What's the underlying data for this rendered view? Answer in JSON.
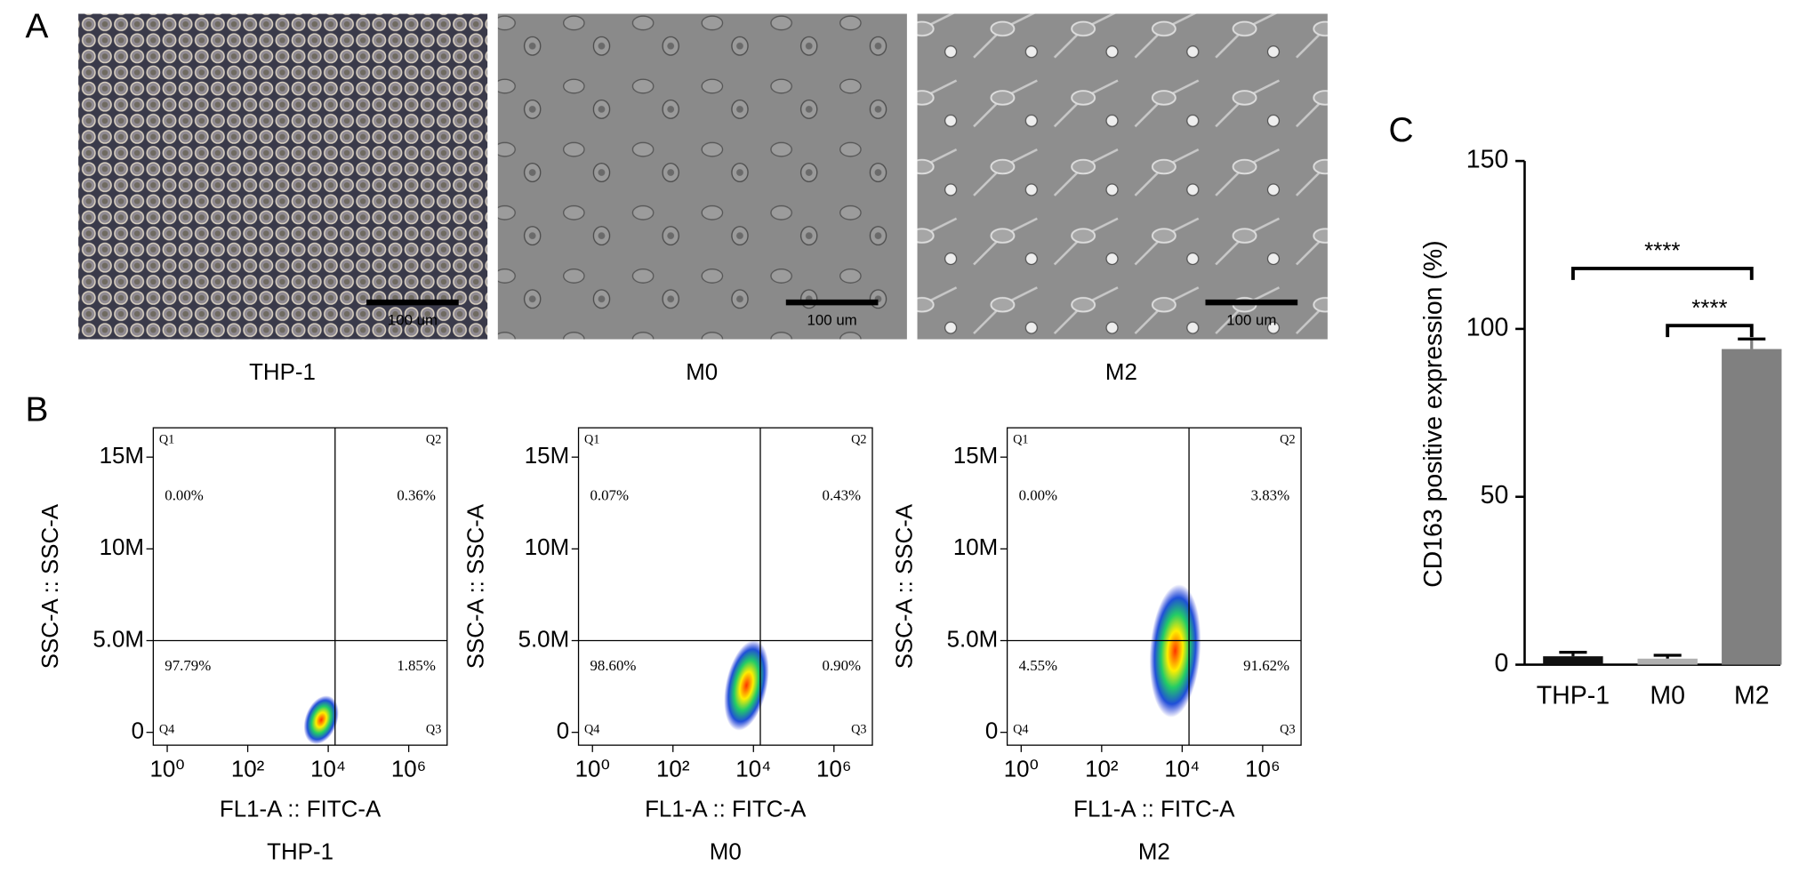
{
  "panel_labels": [
    "A",
    "B",
    "C"
  ],
  "micrographs": [
    {
      "label": "THP-1",
      "scale_bar": "100 um"
    },
    {
      "label": "M0",
      "scale_bar": "100 um"
    },
    {
      "label": "M2",
      "scale_bar": "100 um"
    }
  ],
  "chart_data": [
    {
      "type": "flow",
      "title": "THP-1",
      "x_label": "FL1-A :: FITC-A",
      "y_label": "SSC-A :: SSC-A",
      "x_scale": "log",
      "xlim": [
        0.45,
        9000000
      ],
      "ylim": [
        -700000,
        16600000
      ],
      "xticks": [
        {
          "value": 1,
          "label": "10⁰"
        },
        {
          "value": 100,
          "label": "10²"
        },
        {
          "value": 10000,
          "label": "10⁴"
        },
        {
          "value": 1000000,
          "label": "10⁶"
        }
      ],
      "yticks": [
        0,
        {
          "value": 5000000,
          "label": "5.0M"
        },
        {
          "value": 10000000,
          "label": "10M"
        },
        {
          "value": 15000000,
          "label": "15M"
        }
      ],
      "gate": [
        14800,
        5000000
      ],
      "quadrants": [
        {
          "name": "Q1",
          "percent": "0.00%"
        },
        {
          "name": "Q2",
          "percent": "0.36%"
        },
        {
          "name": "Q3",
          "percent": "1.85%"
        },
        {
          "name": "Q4",
          "percent": "97.79%"
        }
      ]
    },
    {
      "type": "flow",
      "title": "M0",
      "x_label": "FL1-A :: FITC-A",
      "y_label": "SSC-A :: SSC-A",
      "x_scale": "log",
      "xlim": [
        0.45,
        9000000
      ],
      "ylim": [
        -700000,
        16600000
      ],
      "xticks": [
        {
          "value": 1,
          "label": "10⁰"
        },
        {
          "value": 100,
          "label": "10²"
        },
        {
          "value": 10000,
          "label": "10⁴"
        },
        {
          "value": 1000000,
          "label": "10⁶"
        }
      ],
      "yticks": [
        0,
        {
          "value": 5000000,
          "label": "5.0M"
        },
        {
          "value": 10000000,
          "label": "10M"
        },
        {
          "value": 15000000,
          "label": "15M"
        }
      ],
      "gate": [
        14800,
        5000000
      ],
      "quadrants": [
        {
          "name": "Q1",
          "percent": "0.07%"
        },
        {
          "name": "Q2",
          "percent": "0.43%"
        },
        {
          "name": "Q3",
          "percent": "0.90%"
        },
        {
          "name": "Q4",
          "percent": "98.60%"
        }
      ]
    },
    {
      "type": "flow",
      "title": "M2",
      "x_label": "FL1-A :: FITC-A",
      "y_label": "SSC-A :: SSC-A",
      "x_scale": "log",
      "xlim": [
        0.45,
        9000000
      ],
      "ylim": [
        -700000,
        16600000
      ],
      "xticks": [
        {
          "value": 1,
          "label": "10⁰"
        },
        {
          "value": 100,
          "label": "10²"
        },
        {
          "value": 10000,
          "label": "10⁴"
        },
        {
          "value": 1000000,
          "label": "10⁶"
        }
      ],
      "yticks": [
        0,
        {
          "value": 5000000,
          "label": "5.0M"
        },
        {
          "value": 10000000,
          "label": "10M"
        },
        {
          "value": 15000000,
          "label": "15M"
        }
      ],
      "gate": [
        14800,
        5000000
      ],
      "quadrants": [
        {
          "name": "Q1",
          "percent": "0.00%"
        },
        {
          "name": "Q2",
          "percent": "3.83%"
        },
        {
          "name": "Q3",
          "percent": "91.62%"
        },
        {
          "name": "Q4",
          "percent": "4.55%"
        }
      ]
    },
    {
      "type": "bar",
      "y_label": "CD163 positive expression (%)",
      "categories": [
        "THP-1",
        "M0",
        "M2"
      ],
      "values": [
        2.5,
        1.8,
        94
      ],
      "errors": [
        1.2,
        1.0,
        3
      ],
      "colors": [
        "#111111",
        "#b0b0b0",
        "#808080"
      ],
      "ylim": [
        0,
        150
      ],
      "yticks": [
        0,
        50,
        100,
        150
      ],
      "significance": [
        {
          "from": 0,
          "to": 2,
          "label": "****",
          "y": 118
        },
        {
          "from": 1,
          "to": 2,
          "label": "****",
          "y": 101
        }
      ]
    }
  ]
}
